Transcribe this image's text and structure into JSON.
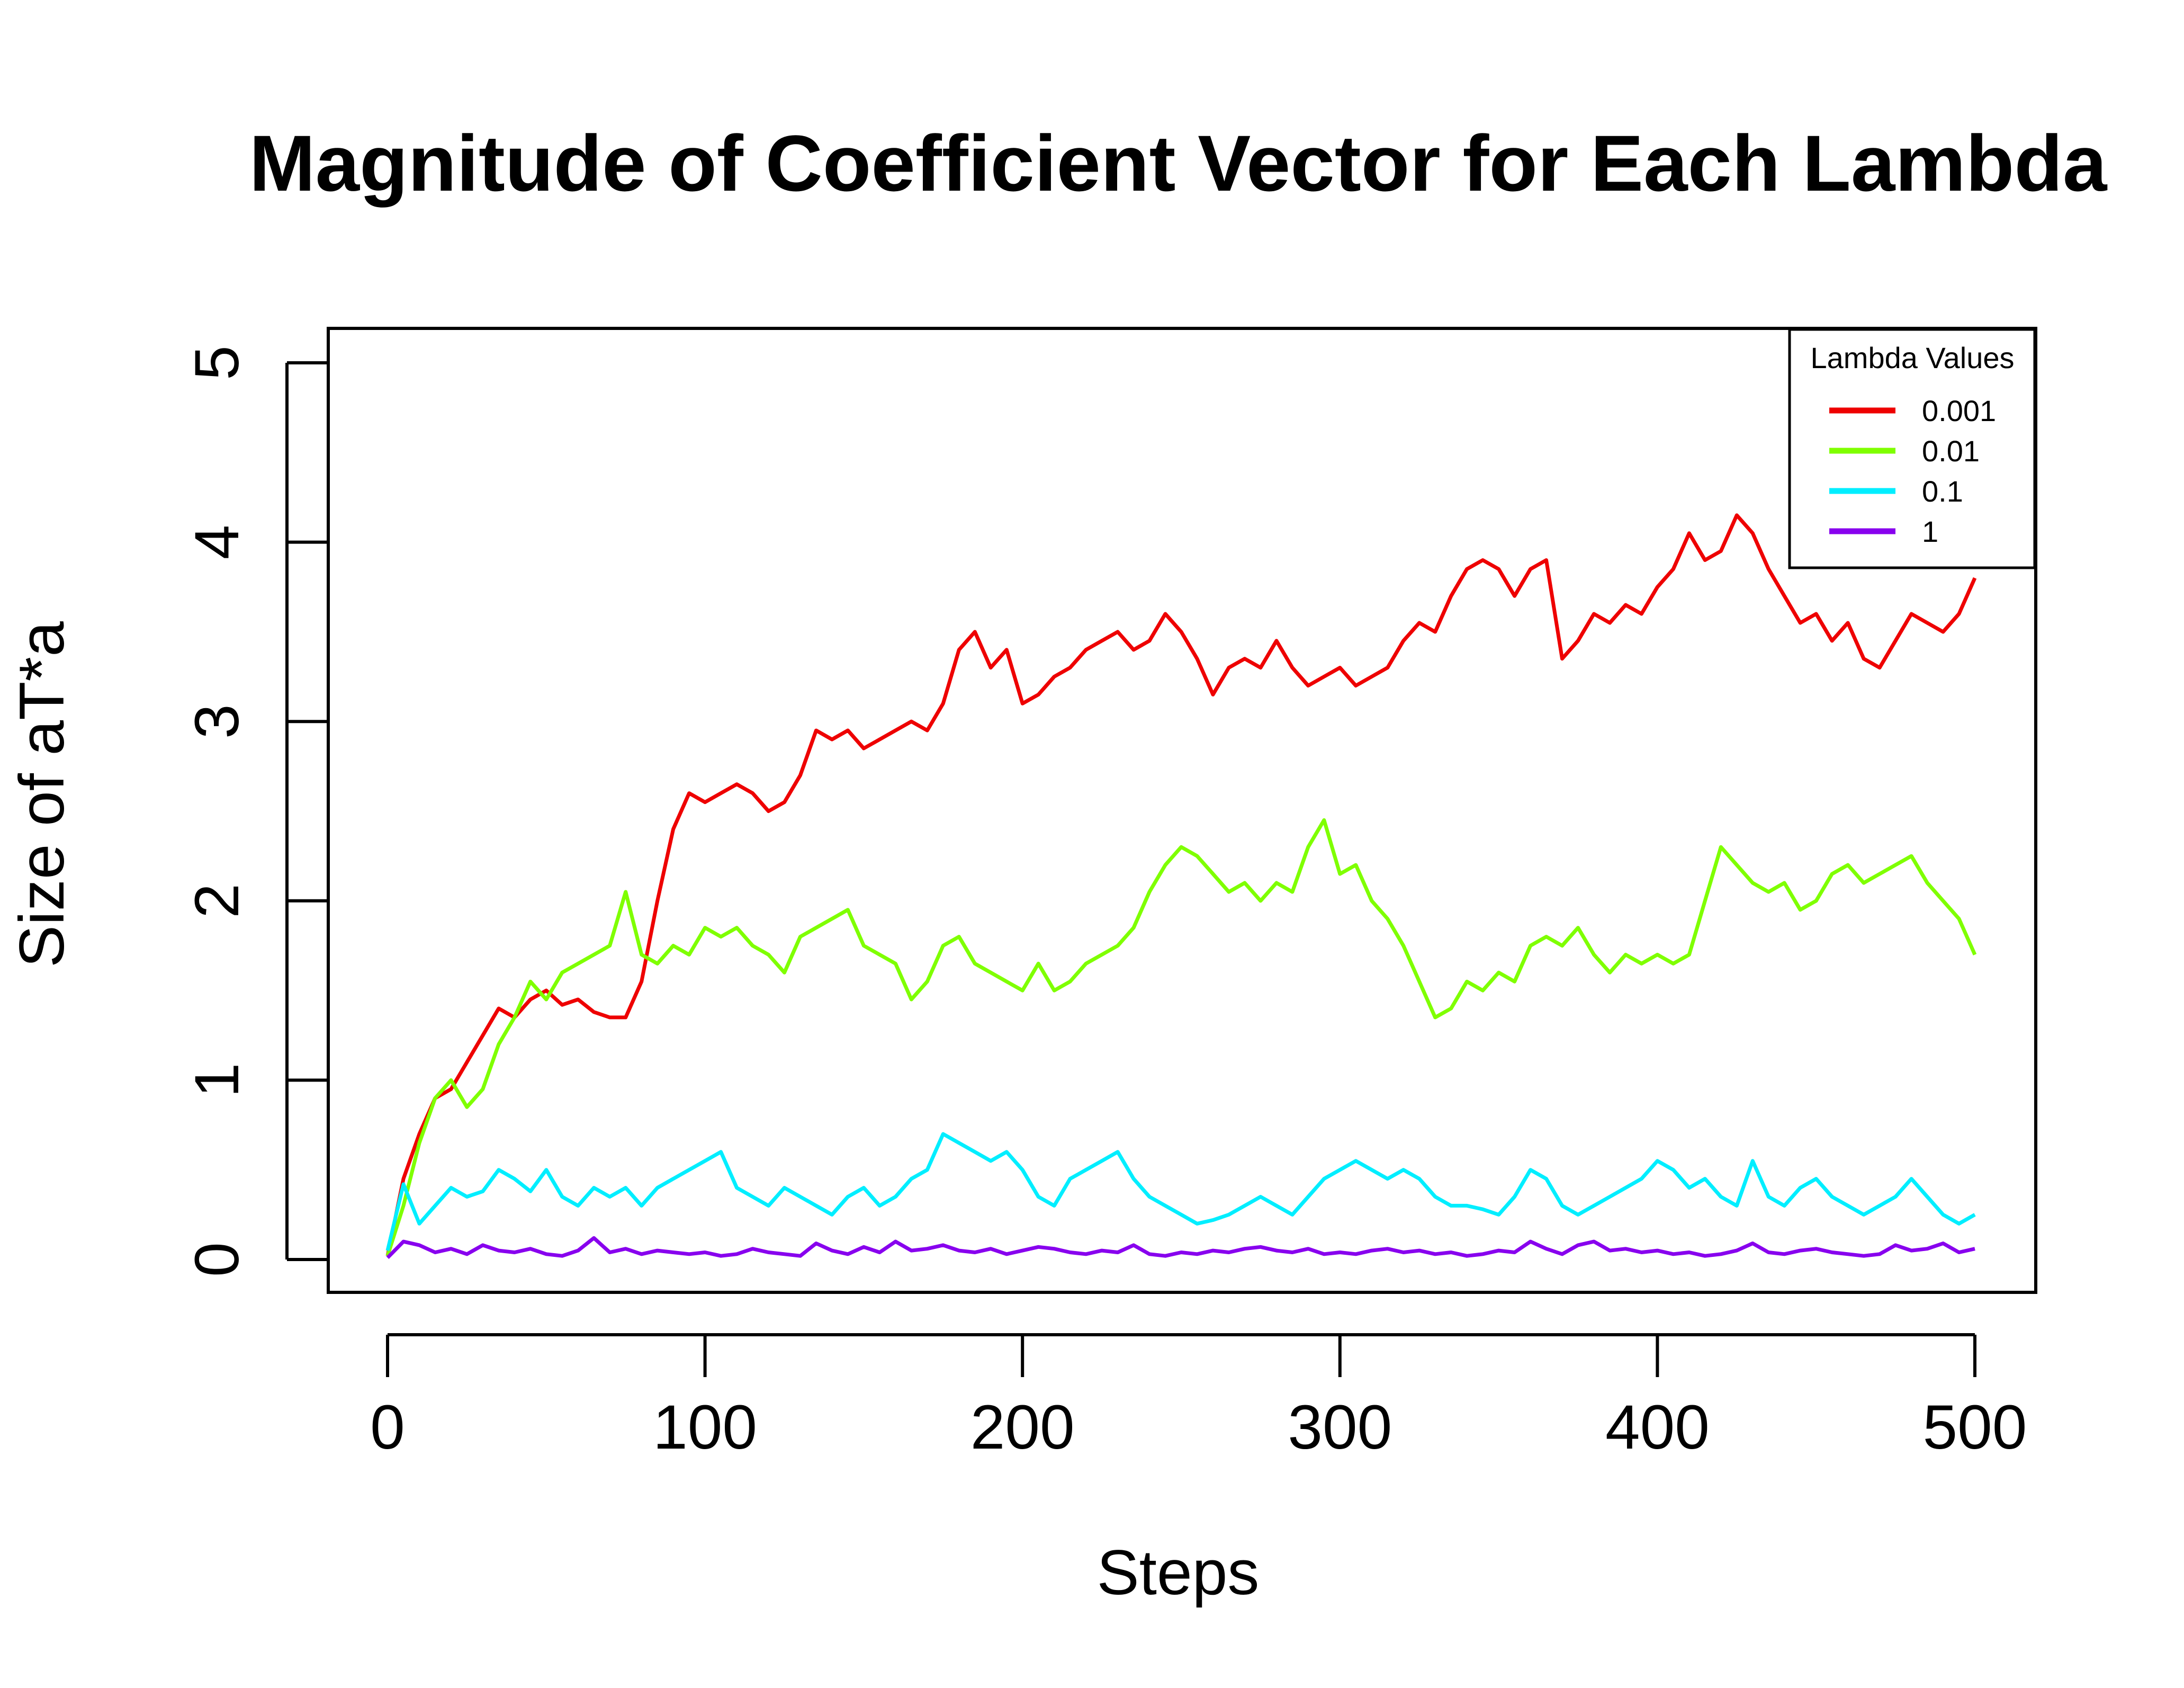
{
  "chart_data": {
    "type": "line",
    "title": "Magnitude of Coefficient Vector for Each Lambda",
    "xlabel": "Steps",
    "ylabel": "Size of aT*a",
    "xlim": [
      0,
      500
    ],
    "ylim": [
      0,
      5
    ],
    "xticks": [
      0,
      100,
      200,
      300,
      400,
      500
    ],
    "yticks": [
      0,
      1,
      2,
      3,
      4,
      5
    ],
    "xtick_labels": [
      "0",
      "100",
      "200",
      "300",
      "400",
      "500"
    ],
    "ytick_labels": [
      "0",
      "1",
      "2",
      "3",
      "4",
      "5"
    ],
    "grid": false,
    "legend": {
      "title": "Lambda Values",
      "placement": "top-right",
      "entries": [
        "0.001",
        "0.01",
        "0.1",
        "1"
      ]
    },
    "series": [
      {
        "name": "0.001",
        "color": "#ee0000",
        "x": [
          0,
          5,
          10,
          15,
          20,
          25,
          30,
          35,
          40,
          45,
          50,
          55,
          60,
          65,
          70,
          75,
          80,
          85,
          90,
          95,
          100,
          105,
          110,
          115,
          120,
          125,
          130,
          135,
          140,
          145,
          150,
          155,
          160,
          165,
          170,
          175,
          180,
          185,
          190,
          195,
          200,
          205,
          210,
          215,
          220,
          225,
          230,
          235,
          240,
          245,
          250,
          255,
          260,
          265,
          270,
          275,
          280,
          285,
          290,
          295,
          300,
          305,
          310,
          315,
          320,
          325,
          330,
          335,
          340,
          345,
          350,
          355,
          360,
          365,
          370,
          375,
          380,
          385,
          390,
          395,
          400,
          405,
          410,
          415,
          420,
          425,
          430,
          435,
          440,
          445,
          450,
          455,
          460,
          465,
          470,
          475,
          480,
          485,
          490,
          495,
          500
        ],
        "values": [
          0.02,
          0.45,
          0.7,
          0.9,
          0.95,
          1.1,
          1.25,
          1.4,
          1.35,
          1.45,
          1.5,
          1.42,
          1.45,
          1.38,
          1.35,
          1.35,
          1.55,
          2.0,
          2.4,
          2.6,
          2.55,
          2.6,
          2.65,
          2.6,
          2.5,
          2.55,
          2.7,
          2.95,
          2.9,
          2.95,
          2.85,
          2.9,
          2.95,
          3.0,
          2.95,
          3.1,
          3.4,
          3.5,
          3.3,
          3.4,
          3.1,
          3.15,
          3.25,
          3.3,
          3.4,
          3.45,
          3.5,
          3.4,
          3.45,
          3.6,
          3.5,
          3.35,
          3.15,
          3.3,
          3.35,
          3.3,
          3.45,
          3.3,
          3.2,
          3.25,
          3.3,
          3.2,
          3.25,
          3.3,
          3.45,
          3.55,
          3.5,
          3.7,
          3.85,
          3.9,
          3.85,
          3.7,
          3.85,
          3.9,
          3.35,
          3.45,
          3.6,
          3.55,
          3.65,
          3.6,
          3.75,
          3.85,
          4.05,
          3.9,
          3.95,
          4.15,
          4.05,
          3.85,
          3.7,
          3.55,
          3.6,
          3.45,
          3.55,
          3.35,
          3.3,
          3.45,
          3.6,
          3.55,
          3.5,
          3.6,
          3.8
        ]
      },
      {
        "name": "0.01",
        "color": "#7fff00",
        "x": [
          0,
          5,
          10,
          15,
          20,
          25,
          30,
          35,
          40,
          45,
          50,
          55,
          60,
          65,
          70,
          75,
          80,
          85,
          90,
          95,
          100,
          105,
          110,
          115,
          120,
          125,
          130,
          135,
          140,
          145,
          150,
          155,
          160,
          165,
          170,
          175,
          180,
          185,
          190,
          195,
          200,
          205,
          210,
          215,
          220,
          225,
          230,
          235,
          240,
          245,
          250,
          255,
          260,
          265,
          270,
          275,
          280,
          285,
          290,
          295,
          300,
          305,
          310,
          315,
          320,
          325,
          330,
          335,
          340,
          345,
          350,
          355,
          360,
          365,
          370,
          375,
          380,
          385,
          390,
          395,
          400,
          405,
          410,
          415,
          420,
          425,
          430,
          435,
          440,
          445,
          450,
          455,
          460,
          465,
          470,
          475,
          480,
          485,
          490,
          495,
          500
        ],
        "values": [
          0.02,
          0.3,
          0.65,
          0.9,
          1.0,
          0.85,
          0.95,
          1.2,
          1.35,
          1.55,
          1.45,
          1.6,
          1.65,
          1.7,
          1.75,
          2.05,
          1.7,
          1.65,
          1.75,
          1.7,
          1.85,
          1.8,
          1.85,
          1.75,
          1.7,
          1.6,
          1.8,
          1.85,
          1.9,
          1.95,
          1.75,
          1.7,
          1.65,
          1.45,
          1.55,
          1.75,
          1.8,
          1.65,
          1.6,
          1.55,
          1.5,
          1.65,
          1.5,
          1.55,
          1.65,
          1.7,
          1.75,
          1.85,
          2.05,
          2.2,
          2.3,
          2.25,
          2.15,
          2.05,
          2.1,
          2.0,
          2.1,
          2.05,
          2.3,
          2.45,
          2.15,
          2.2,
          2.0,
          1.9,
          1.75,
          1.55,
          1.35,
          1.4,
          1.55,
          1.5,
          1.6,
          1.55,
          1.75,
          1.8,
          1.75,
          1.85,
          1.7,
          1.6,
          1.7,
          1.65,
          1.7,
          1.65,
          1.7,
          2.0,
          2.3,
          2.2,
          2.1,
          2.05,
          2.1,
          1.95,
          2.0,
          2.15,
          2.2,
          2.1,
          2.15,
          2.2,
          2.25,
          2.1,
          2.0,
          1.9,
          1.7
        ]
      },
      {
        "name": "0.1",
        "color": "#00eeff",
        "x": [
          0,
          5,
          10,
          15,
          20,
          25,
          30,
          35,
          40,
          45,
          50,
          55,
          60,
          65,
          70,
          75,
          80,
          85,
          90,
          95,
          100,
          105,
          110,
          115,
          120,
          125,
          130,
          135,
          140,
          145,
          150,
          155,
          160,
          165,
          170,
          175,
          180,
          185,
          190,
          195,
          200,
          205,
          210,
          215,
          220,
          225,
          230,
          235,
          240,
          245,
          250,
          255,
          260,
          265,
          270,
          275,
          280,
          285,
          290,
          295,
          300,
          305,
          310,
          315,
          320,
          325,
          330,
          335,
          340,
          345,
          350,
          355,
          360,
          365,
          370,
          375,
          380,
          385,
          390,
          395,
          400,
          405,
          410,
          415,
          420,
          425,
          430,
          435,
          440,
          445,
          450,
          455,
          460,
          465,
          470,
          475,
          480,
          485,
          490,
          495,
          500
        ],
        "values": [
          0.05,
          0.42,
          0.2,
          0.3,
          0.4,
          0.35,
          0.38,
          0.5,
          0.45,
          0.38,
          0.5,
          0.35,
          0.3,
          0.4,
          0.35,
          0.4,
          0.3,
          0.4,
          0.45,
          0.5,
          0.55,
          0.6,
          0.4,
          0.35,
          0.3,
          0.4,
          0.35,
          0.3,
          0.25,
          0.35,
          0.4,
          0.3,
          0.35,
          0.45,
          0.5,
          0.7,
          0.65,
          0.6,
          0.55,
          0.6,
          0.5,
          0.35,
          0.3,
          0.45,
          0.5,
          0.55,
          0.6,
          0.45,
          0.35,
          0.3,
          0.25,
          0.2,
          0.22,
          0.25,
          0.3,
          0.35,
          0.3,
          0.25,
          0.35,
          0.45,
          0.5,
          0.55,
          0.5,
          0.45,
          0.5,
          0.45,
          0.35,
          0.3,
          0.3,
          0.28,
          0.25,
          0.35,
          0.5,
          0.45,
          0.3,
          0.25,
          0.3,
          0.35,
          0.4,
          0.45,
          0.55,
          0.5,
          0.4,
          0.45,
          0.35,
          0.3,
          0.55,
          0.35,
          0.3,
          0.4,
          0.45,
          0.35,
          0.3,
          0.25,
          0.3,
          0.35,
          0.45,
          0.35,
          0.25,
          0.2,
          0.25
        ]
      },
      {
        "name": "1",
        "color": "#8800ee",
        "x": [
          0,
          5,
          10,
          15,
          20,
          25,
          30,
          35,
          40,
          45,
          50,
          55,
          60,
          65,
          70,
          75,
          80,
          85,
          90,
          95,
          100,
          105,
          110,
          115,
          120,
          125,
          130,
          135,
          140,
          145,
          150,
          155,
          160,
          165,
          170,
          175,
          180,
          185,
          190,
          195,
          200,
          205,
          210,
          215,
          220,
          225,
          230,
          235,
          240,
          245,
          250,
          255,
          260,
          265,
          270,
          275,
          280,
          285,
          290,
          295,
          300,
          305,
          310,
          315,
          320,
          325,
          330,
          335,
          340,
          345,
          350,
          355,
          360,
          365,
          370,
          375,
          380,
          385,
          390,
          395,
          400,
          405,
          410,
          415,
          420,
          425,
          430,
          435,
          440,
          445,
          450,
          455,
          460,
          465,
          470,
          475,
          480,
          485,
          490,
          495,
          500
        ],
        "values": [
          0.01,
          0.1,
          0.08,
          0.04,
          0.06,
          0.03,
          0.08,
          0.05,
          0.04,
          0.06,
          0.03,
          0.02,
          0.05,
          0.12,
          0.04,
          0.06,
          0.03,
          0.05,
          0.04,
          0.03,
          0.04,
          0.02,
          0.03,
          0.06,
          0.04,
          0.03,
          0.02,
          0.09,
          0.05,
          0.03,
          0.07,
          0.04,
          0.1,
          0.05,
          0.06,
          0.08,
          0.05,
          0.04,
          0.06,
          0.03,
          0.05,
          0.07,
          0.06,
          0.04,
          0.03,
          0.05,
          0.04,
          0.08,
          0.03,
          0.02,
          0.04,
          0.03,
          0.05,
          0.04,
          0.06,
          0.07,
          0.05,
          0.04,
          0.06,
          0.03,
          0.04,
          0.03,
          0.05,
          0.06,
          0.04,
          0.05,
          0.03,
          0.04,
          0.02,
          0.03,
          0.05,
          0.04,
          0.1,
          0.06,
          0.03,
          0.08,
          0.1,
          0.05,
          0.06,
          0.04,
          0.05,
          0.03,
          0.04,
          0.02,
          0.03,
          0.05,
          0.09,
          0.04,
          0.03,
          0.05,
          0.06,
          0.04,
          0.03,
          0.02,
          0.03,
          0.08,
          0.05,
          0.06,
          0.09,
          0.04,
          0.06
        ]
      }
    ]
  }
}
